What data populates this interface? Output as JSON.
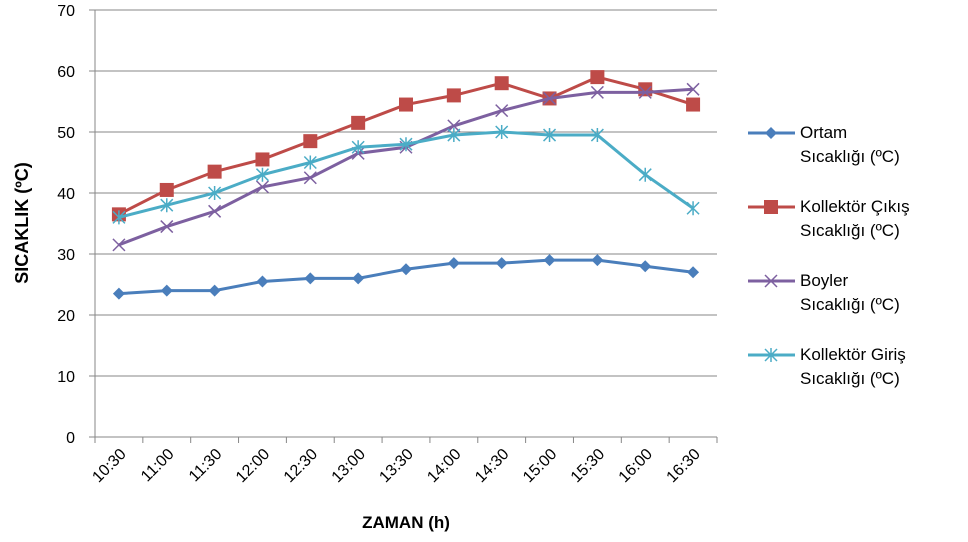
{
  "chart_data": {
    "type": "line",
    "y_label": "SICAKLIK (ºC)",
    "x_label": "ZAMAN (h)",
    "categories": [
      "10:30",
      "11:00",
      "11:30",
      "12:00",
      "12:30",
      "13:00",
      "13:30",
      "14:00",
      "14:30",
      "15:00",
      "15:30",
      "16:00",
      "16:30"
    ],
    "ylim": [
      0,
      70
    ],
    "yticks": [
      0,
      10,
      20,
      30,
      40,
      50,
      60,
      70
    ],
    "grid": true,
    "legend": "right",
    "series": [
      {
        "name": "Ortam\nSıcaklığı (ºC)",
        "color": "#4a7ebb",
        "marker": "diamond",
        "values": [
          23.5,
          24,
          24,
          25.5,
          26,
          26,
          27.5,
          28.5,
          28.5,
          29,
          29,
          28,
          27
        ]
      },
      {
        "name": "Kollektör Çıkış\nSıcaklığı (ºC)",
        "color": "#be4b48",
        "marker": "square",
        "values": [
          36.5,
          40.5,
          43.5,
          45.5,
          48.5,
          51.5,
          54.5,
          56,
          58,
          55.5,
          59,
          57,
          54.5
        ]
      },
      {
        "name": "Boyler\nSıcaklığı (ºC)",
        "color": "#7d60a0",
        "marker": "x",
        "values": [
          31.5,
          34.5,
          37,
          41,
          42.5,
          46.5,
          47.5,
          51,
          53.5,
          55.5,
          56.5,
          56.5,
          57
        ]
      },
      {
        "name": "Kollektör Giriş\nSıcaklığı  (ºC)",
        "color": "#4bacc6",
        "marker": "star",
        "values": [
          36,
          38,
          40,
          43,
          45,
          47.5,
          48,
          49.5,
          50,
          49.5,
          49.5,
          43,
          37.5
        ]
      }
    ]
  }
}
